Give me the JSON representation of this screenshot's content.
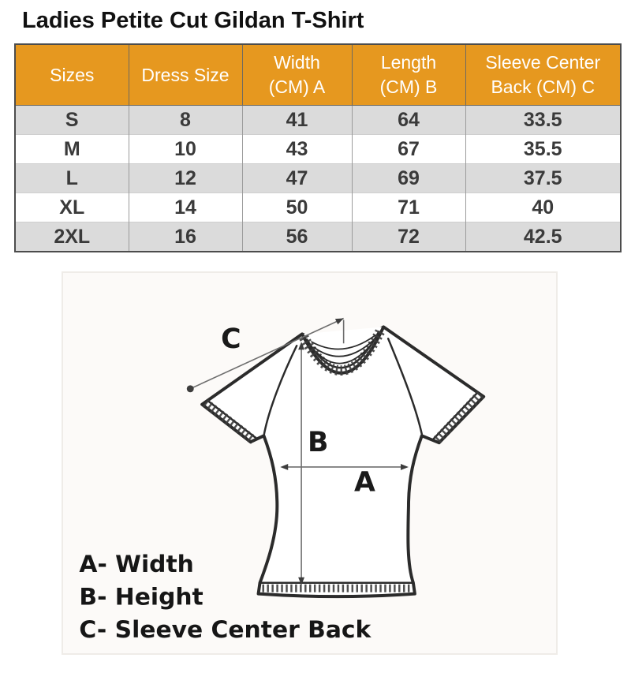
{
  "page": {
    "title": "Ladies Petite Cut Gildan T-Shirt"
  },
  "colors": {
    "header_bg": "#E6981F",
    "header_text": "#FFFFFF",
    "row_alt_bg": "#DBDBDB",
    "row_bg": "#FFFFFF",
    "cell_text": "#3A3A3A",
    "table_border": "#4C4C4C"
  },
  "size_table": {
    "columns": [
      "Sizes",
      "Dress Size",
      "Width\n(CM) A",
      "Length\n(CM) B",
      "Sleeve Center\nBack (CM) C"
    ],
    "rows": [
      [
        "S",
        "8",
        "41",
        "64",
        "33.5"
      ],
      [
        "M",
        "10",
        "43",
        "67",
        "35.5"
      ],
      [
        "L",
        "12",
        "47",
        "69",
        "37.5"
      ],
      [
        "XL",
        "14",
        "50",
        "71",
        "40"
      ],
      [
        "2XL",
        "16",
        "56",
        "72",
        "42.5"
      ]
    ]
  },
  "diagram": {
    "labels": {
      "a": "A",
      "b": "B",
      "c": "C"
    },
    "legend": [
      "A- Width",
      "B- Height",
      "C- Sleeve Center Back"
    ]
  }
}
